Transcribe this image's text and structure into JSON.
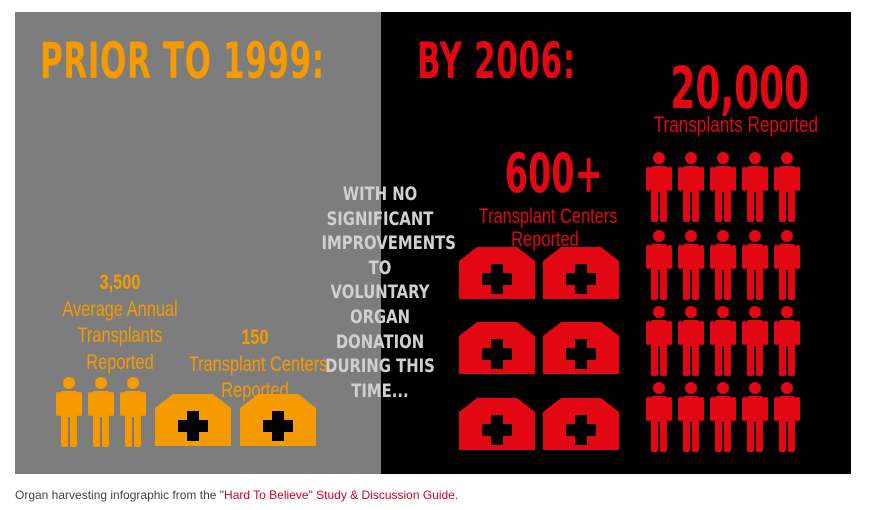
{
  "infographic": {
    "left": {
      "heading": "PRIOR TO 1999:",
      "stat1": {
        "number": "3,500",
        "line1": "Average Annual",
        "line2": "Transplants",
        "line3": "Reported"
      },
      "stat2": {
        "number": "150",
        "line1": "Transplant Centers",
        "line2": "Reported"
      },
      "people_count": 3,
      "hospital_count": 2
    },
    "middle": {
      "lines": [
        "WITH NO",
        "SIGNIFICANT",
        "IMPROVEMENTS",
        "TO VOLUNTARY",
        "ORGAN",
        "DONATION",
        "DURING THIS",
        "TIME..."
      ]
    },
    "right": {
      "heading": "BY 2006:",
      "centers": {
        "number": "600+",
        "line1": "Transplant Centers",
        "line2": "Reported"
      },
      "transplants": {
        "number": "20,000",
        "label": "Transplants Reported"
      },
      "people_count": 20,
      "hospital_count": 6
    },
    "colors": {
      "orange": "#f59b00",
      "red": "#e30613",
      "grey_panel": "#7d7d7d",
      "black_panel": "#000000",
      "middle_text": "#d0d0d0"
    },
    "icons": {
      "person": "person-icon",
      "hospital": "hospital-icon"
    }
  },
  "caption": {
    "prefix": "Organ harvesting infographic from the ",
    "link_text": "\"Hard To Believe\" Study & Discussion Guide",
    "suffix": "."
  }
}
